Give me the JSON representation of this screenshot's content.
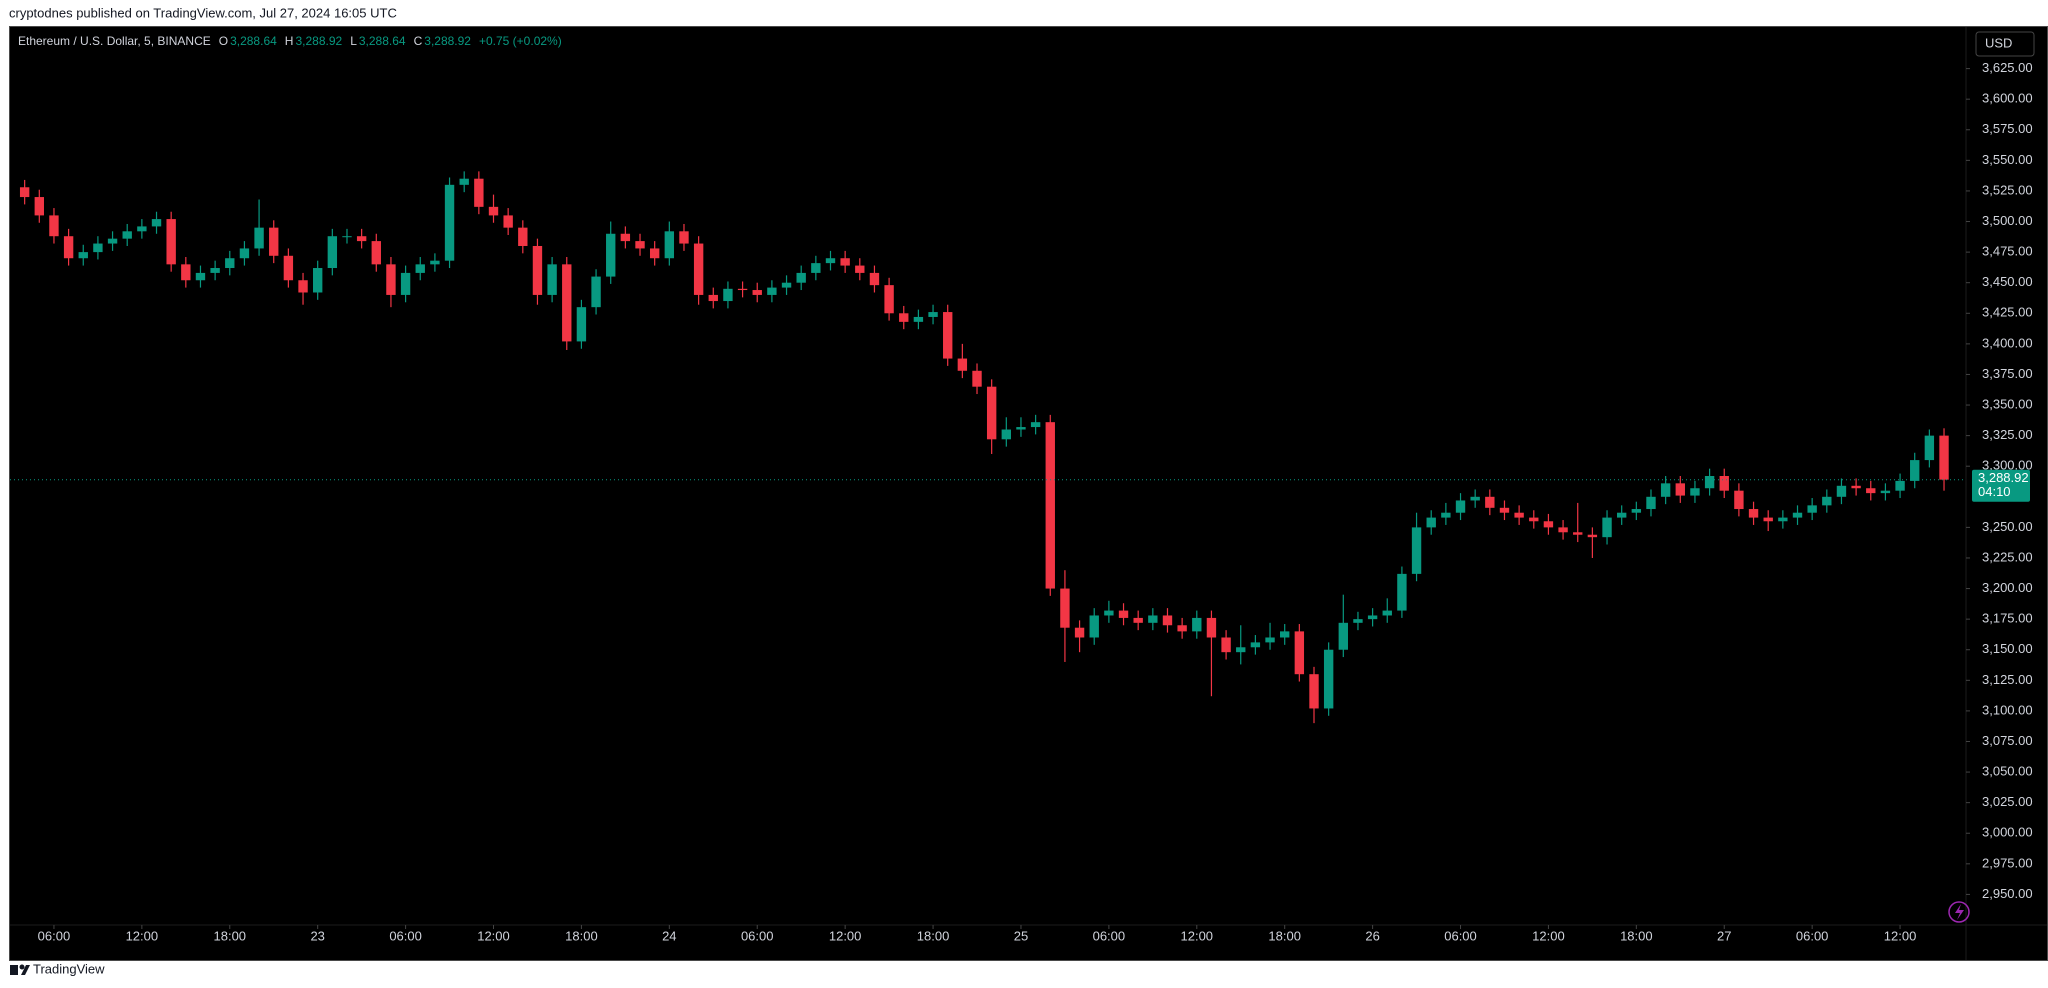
{
  "header": {
    "published": "cryptodnes published on TradingView.com, Jul 27, 2024 16:05 UTC"
  },
  "footer": {
    "brand": "TradingView"
  },
  "chart_data": {
    "type": "candlestick",
    "title": "Ethereum / U.S. Dollar, 5, BINANCE",
    "ohlc_legend": {
      "o_label": "O",
      "o": "3,288.64",
      "h_label": "H",
      "h": "3,288.92",
      "l_label": "L",
      "l": "3,288.64",
      "c_label": "C",
      "c": "3,288.92",
      "change": "+0.75 (+0.02%)"
    },
    "currency": "USD",
    "last_price": {
      "value": 3288.92,
      "label": "3,288.92"
    },
    "countdown": "04:10",
    "up_color": "#089981",
    "down_color": "#f23645",
    "xlim": [
      0,
      133.5
    ],
    "ylim": [
      2925,
      3659
    ],
    "xticks": [
      {
        "value": 3,
        "label": "06:00"
      },
      {
        "value": 9,
        "label": "12:00"
      },
      {
        "value": 15,
        "label": "18:00"
      },
      {
        "value": 21,
        "label": "23"
      },
      {
        "value": 27,
        "label": "06:00"
      },
      {
        "value": 33,
        "label": "12:00"
      },
      {
        "value": 39,
        "label": "18:00"
      },
      {
        "value": 45,
        "label": "24"
      },
      {
        "value": 51,
        "label": "06:00"
      },
      {
        "value": 57,
        "label": "12:00"
      },
      {
        "value": 63,
        "label": "18:00"
      },
      {
        "value": 69,
        "label": "25"
      },
      {
        "value": 75,
        "label": "06:00"
      },
      {
        "value": 81,
        "label": "12:00"
      },
      {
        "value": 87,
        "label": "18:00"
      },
      {
        "value": 93,
        "label": "26"
      },
      {
        "value": 99,
        "label": "06:00"
      },
      {
        "value": 105,
        "label": "12:00"
      },
      {
        "value": 111,
        "label": "18:00"
      },
      {
        "value": 117,
        "label": "27"
      },
      {
        "value": 123,
        "label": "06:00"
      },
      {
        "value": 129,
        "label": "12:00"
      }
    ],
    "yticks": [
      {
        "value": 3625,
        "label": "3,625.00"
      },
      {
        "value": 3600,
        "label": "3,600.00"
      },
      {
        "value": 3575,
        "label": "3,575.00"
      },
      {
        "value": 3550,
        "label": "3,550.00"
      },
      {
        "value": 3525,
        "label": "3,525.00"
      },
      {
        "value": 3500,
        "label": "3,500.00"
      },
      {
        "value": 3475,
        "label": "3,475.00"
      },
      {
        "value": 3450,
        "label": "3,450.00"
      },
      {
        "value": 3425,
        "label": "3,425.00"
      },
      {
        "value": 3400,
        "label": "3,400.00"
      },
      {
        "value": 3375,
        "label": "3,375.00"
      },
      {
        "value": 3350,
        "label": "3,350.00"
      },
      {
        "value": 3325,
        "label": "3,325.00"
      },
      {
        "value": 3300,
        "label": "3,300.00"
      },
      {
        "value": 3250,
        "label": "3,250.00"
      },
      {
        "value": 3225,
        "label": "3,225.00"
      },
      {
        "value": 3200,
        "label": "3,200.00"
      },
      {
        "value": 3175,
        "label": "3,175.00"
      },
      {
        "value": 3150,
        "label": "3,150.00"
      },
      {
        "value": 3125,
        "label": "3,125.00"
      },
      {
        "value": 3100,
        "label": "3,100.00"
      },
      {
        "value": 3075,
        "label": "3,075.00"
      },
      {
        "value": 3050,
        "label": "3,050.00"
      },
      {
        "value": 3025,
        "label": "3,025.00"
      },
      {
        "value": 3000,
        "label": "3,000.00"
      },
      {
        "value": 2975,
        "label": "2,975.00"
      },
      {
        "value": 2950,
        "label": "2,950.00"
      }
    ],
    "x": [
      1,
      2,
      3,
      4,
      5,
      6,
      7,
      8,
      9,
      10,
      11,
      12,
      13,
      14,
      15,
      16,
      17,
      18,
      19,
      20,
      21,
      22,
      23,
      24,
      25,
      26,
      27,
      28,
      29,
      30,
      31,
      32,
      33,
      34,
      35,
      36,
      37,
      38,
      39,
      40,
      41,
      42,
      43,
      44,
      45,
      46,
      47,
      48,
      49,
      50,
      51,
      52,
      53,
      54,
      55,
      56,
      57,
      58,
      59,
      60,
      61,
      62,
      63,
      64,
      65,
      66,
      67,
      68,
      69,
      70,
      71,
      72,
      73,
      74,
      75,
      76,
      77,
      78,
      79,
      80,
      81,
      82,
      83,
      84,
      85,
      86,
      87,
      88,
      89,
      90,
      91,
      92,
      93,
      94,
      95,
      96,
      97,
      98,
      99,
      100,
      101,
      102,
      103,
      104,
      105,
      106,
      107,
      108,
      109,
      110,
      111,
      112,
      113,
      114,
      115,
      116,
      117,
      118,
      119,
      120,
      121,
      122,
      123,
      124,
      125,
      126,
      127,
      128,
      129,
      130,
      131,
      132
    ],
    "open": [
      3528,
      3520,
      3505,
      3488,
      3470,
      3475,
      3482,
      3486,
      3492,
      3496,
      3502,
      3465,
      3452,
      3458,
      3462,
      3470,
      3478,
      3495,
      3472,
      3452,
      3442,
      3462,
      3488,
      3488,
      3484,
      3465,
      3440,
      3458,
      3465,
      3468,
      3530,
      3535,
      3512,
      3505,
      3495,
      3480,
      3440,
      3465,
      3402,
      3430,
      3455,
      3490,
      3484,
      3478,
      3470,
      3492,
      3482,
      3440,
      3435,
      3445,
      3444,
      3440,
      3446,
      3450,
      3458,
      3466,
      3470,
      3464,
      3458,
      3448,
      3425,
      3418,
      3422,
      3426,
      3388,
      3378,
      3365,
      3322,
      3330,
      3332,
      3336,
      3200,
      3168,
      3160,
      3178,
      3182,
      3176,
      3172,
      3178,
      3170,
      3165,
      3176,
      3160,
      3148,
      3152,
      3156,
      3160,
      3165,
      3130,
      3102,
      3150,
      3172,
      3175,
      3178,
      3182,
      3212,
      3250,
      3258,
      3262,
      3272,
      3275,
      3266,
      3262,
      3258,
      3255,
      3250,
      3246,
      3244,
      3242,
      3258,
      3262,
      3265,
      3275,
      3286,
      3276,
      3282,
      3292,
      3280,
      3265,
      3258,
      3255,
      3258,
      3262,
      3268,
      3275,
      3284,
      3282,
      3278,
      3280,
      3288,
      3305,
      3325
    ],
    "high": [
      3534,
      3526,
      3511,
      3494,
      3481,
      3488,
      3492,
      3498,
      3502,
      3508,
      3508,
      3471,
      3464,
      3468,
      3476,
      3484,
      3518,
      3501,
      3478,
      3458,
      3468,
      3494,
      3494,
      3494,
      3490,
      3471,
      3464,
      3471,
      3474,
      3536,
      3541,
      3541,
      3522,
      3511,
      3501,
      3486,
      3471,
      3471,
      3436,
      3461,
      3500,
      3496,
      3490,
      3484,
      3500,
      3498,
      3488,
      3446,
      3451,
      3451,
      3450,
      3452,
      3456,
      3464,
      3472,
      3476,
      3476,
      3470,
      3464,
      3454,
      3431,
      3428,
      3432,
      3432,
      3400,
      3384,
      3371,
      3340,
      3340,
      3342,
      3342,
      3215,
      3174,
      3184,
      3190,
      3188,
      3182,
      3184,
      3184,
      3176,
      3182,
      3182,
      3166,
      3170,
      3162,
      3172,
      3171,
      3171,
      3136,
      3156,
      3195,
      3181,
      3184,
      3192,
      3218,
      3262,
      3264,
      3270,
      3278,
      3281,
      3281,
      3272,
      3268,
      3264,
      3261,
      3256,
      3270,
      3250,
      3264,
      3268,
      3271,
      3281,
      3292,
      3292,
      3288,
      3298,
      3298,
      3286,
      3271,
      3264,
      3264,
      3268,
      3274,
      3281,
      3290,
      3290,
      3288,
      3286,
      3294,
      3311,
      3330,
      3331
    ],
    "low": [
      3514,
      3499,
      3482,
      3464,
      3464,
      3469,
      3476,
      3480,
      3486,
      3490,
      3459,
      3446,
      3446,
      3452,
      3456,
      3464,
      3472,
      3466,
      3446,
      3432,
      3436,
      3456,
      3482,
      3478,
      3459,
      3430,
      3434,
      3452,
      3459,
      3462,
      3524,
      3506,
      3499,
      3489,
      3474,
      3432,
      3434,
      3395,
      3396,
      3424,
      3449,
      3478,
      3472,
      3464,
      3464,
      3476,
      3432,
      3429,
      3429,
      3438,
      3434,
      3434,
      3440,
      3444,
      3452,
      3460,
      3458,
      3452,
      3442,
      3419,
      3412,
      3412,
      3416,
      3382,
      3372,
      3359,
      3310,
      3316,
      3324,
      3326,
      3194,
      3140,
      3148,
      3154,
      3172,
      3170,
      3166,
      3166,
      3164,
      3159,
      3159,
      3112,
      3142,
      3138,
      3146,
      3150,
      3154,
      3124,
      3090,
      3096,
      3144,
      3166,
      3169,
      3172,
      3176,
      3206,
      3244,
      3252,
      3256,
      3266,
      3260,
      3256,
      3252,
      3249,
      3244,
      3240,
      3238,
      3225,
      3236,
      3252,
      3256,
      3259,
      3269,
      3270,
      3270,
      3276,
      3274,
      3259,
      3252,
      3247,
      3249,
      3252,
      3256,
      3262,
      3269,
      3276,
      3272,
      3272,
      3274,
      3282,
      3299,
      3280
    ],
    "close": [
      3520,
      3505,
      3488,
      3470,
      3475,
      3482,
      3486,
      3492,
      3496,
      3502,
      3465,
      3452,
      3458,
      3462,
      3470,
      3478,
      3495,
      3472,
      3452,
      3442,
      3462,
      3488,
      3488,
      3484,
      3465,
      3440,
      3458,
      3465,
      3468,
      3530,
      3535,
      3512,
      3505,
      3495,
      3480,
      3440,
      3465,
      3402,
      3430,
      3455,
      3490,
      3484,
      3478,
      3470,
      3492,
      3482,
      3440,
      3435,
      3445,
      3444,
      3440,
      3446,
      3450,
      3458,
      3466,
      3470,
      3464,
      3458,
      3448,
      3425,
      3418,
      3422,
      3426,
      3388,
      3378,
      3365,
      3322,
      3330,
      3332,
      3336,
      3200,
      3168,
      3160,
      3178,
      3182,
      3176,
      3172,
      3178,
      3170,
      3165,
      3176,
      3160,
      3148,
      3152,
      3156,
      3160,
      3165,
      3130,
      3102,
      3150,
      3172,
      3175,
      3178,
      3182,
      3212,
      3250,
      3258,
      3262,
      3272,
      3275,
      3266,
      3262,
      3258,
      3255,
      3250,
      3246,
      3244,
      3242,
      3258,
      3262,
      3265,
      3275,
      3286,
      3276,
      3282,
      3292,
      3280,
      3265,
      3258,
      3255,
      3258,
      3262,
      3268,
      3275,
      3284,
      3282,
      3278,
      3280,
      3288,
      3305,
      3325,
      3289
    ]
  }
}
